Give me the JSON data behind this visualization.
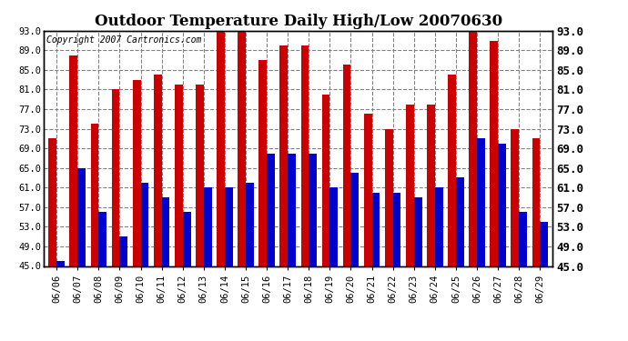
{
  "dates": [
    "06/06",
    "06/07",
    "06/08",
    "06/09",
    "06/10",
    "06/11",
    "06/12",
    "06/13",
    "06/14",
    "06/15",
    "06/16",
    "06/17",
    "06/18",
    "06/19",
    "06/20",
    "06/21",
    "06/22",
    "06/23",
    "06/24",
    "06/25",
    "06/26",
    "06/27",
    "06/28",
    "06/29"
  ],
  "highs": [
    71,
    88,
    74,
    81,
    83,
    84,
    82,
    82,
    93,
    93,
    87,
    90,
    90,
    80,
    86,
    76,
    73,
    78,
    78,
    84,
    93,
    91,
    73,
    71
  ],
  "lows": [
    46,
    65,
    56,
    51,
    62,
    59,
    56,
    61,
    61,
    62,
    68,
    68,
    68,
    61,
    64,
    60,
    60,
    59,
    61,
    63,
    71,
    70,
    56,
    54
  ],
  "high_color": "#cc0000",
  "low_color": "#0000cc",
  "title": "Outdoor Temperature Daily High/Low 20070630",
  "copyright_text": "Copyright 2007 Cartronics.com",
  "ymin": 45.0,
  "ymax": 93.0,
  "yticks": [
    45.0,
    49.0,
    53.0,
    57.0,
    61.0,
    65.0,
    69.0,
    73.0,
    77.0,
    81.0,
    85.0,
    89.0,
    93.0
  ],
  "bg_color": "#ffffff",
  "grid_color": "#808080",
  "bar_width": 0.38,
  "title_fontsize": 12,
  "tick_fontsize": 7.5,
  "copyright_fontsize": 7
}
